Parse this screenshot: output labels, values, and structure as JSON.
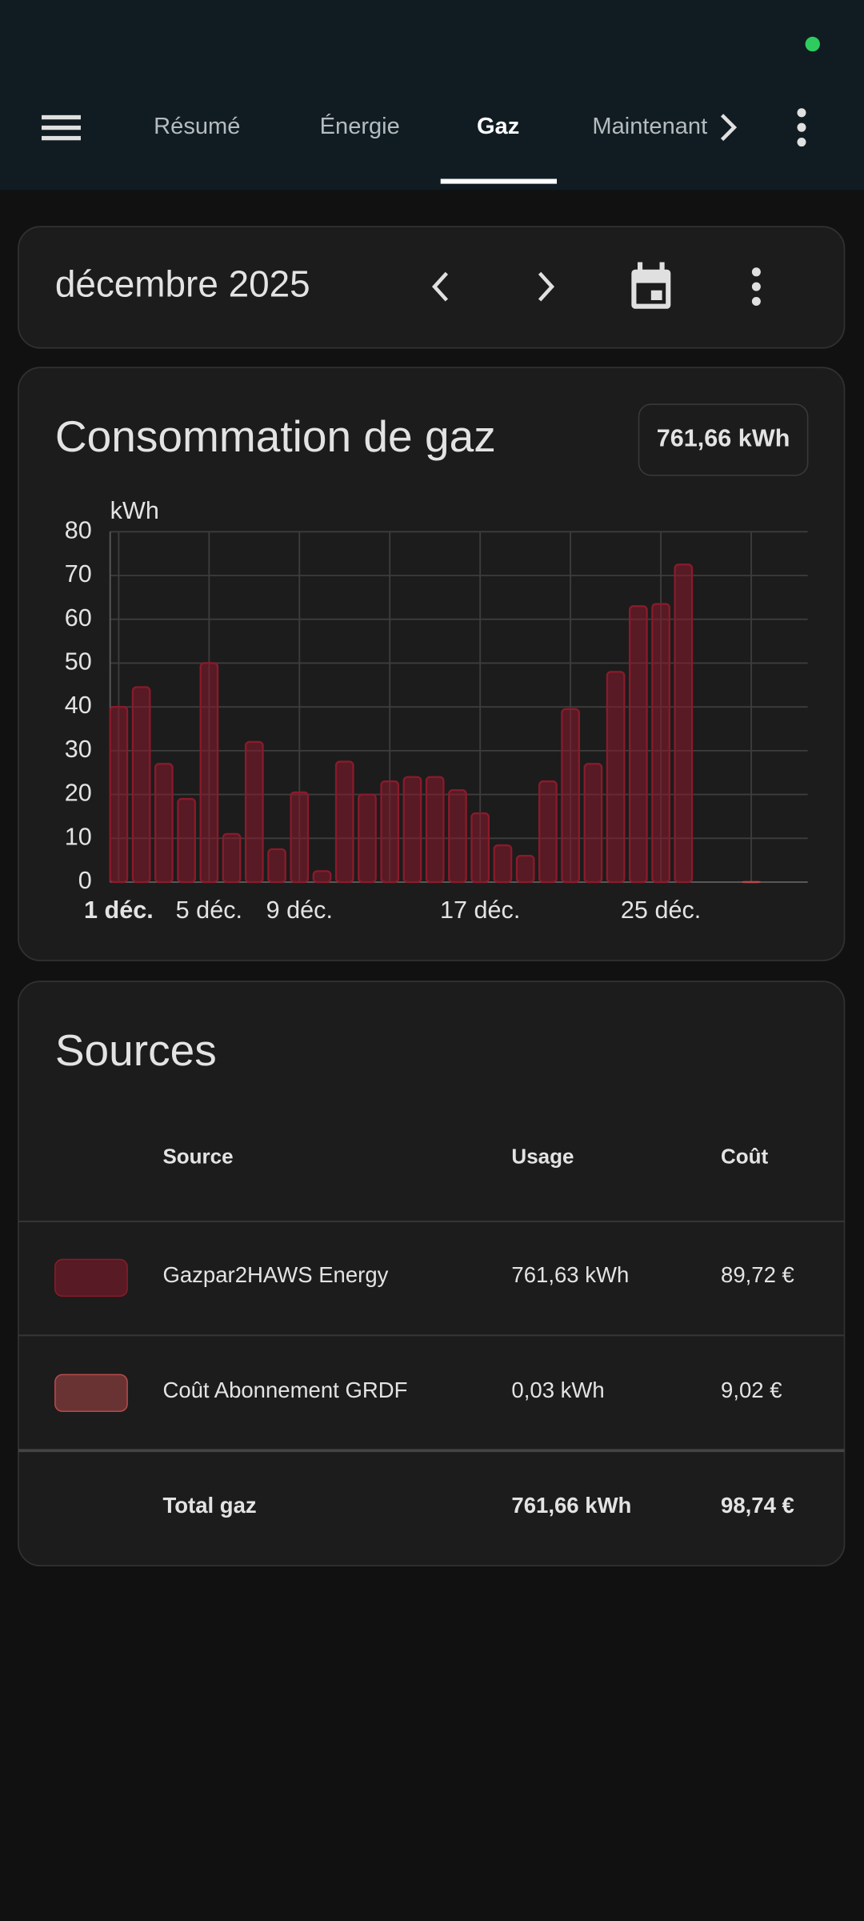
{
  "header": {
    "tabs": [
      "Résumé",
      "Énergie",
      "Gaz",
      "Maintenant"
    ]
  },
  "period": "décembre 2025",
  "chart_data": {
    "type": "bar",
    "title": "Consommation de gaz",
    "total": "761,66 kWh",
    "y_label": "kWh",
    "categories": [
      "1 déc.",
      null,
      null,
      null,
      "5 déc.",
      null,
      null,
      null,
      "9 déc.",
      null,
      null,
      null,
      null,
      null,
      null,
      null,
      "17 déc.",
      null,
      null,
      null,
      null,
      null,
      null,
      null,
      "25 déc.",
      null,
      null,
      null,
      null,
      null,
      null
    ],
    "series": [
      {
        "name": "Gazpar2HAWS Energy",
        "color": "#8b1a2b",
        "values": [
          40,
          44.5,
          27,
          19,
          50,
          11,
          32,
          7.5,
          20.5,
          2.5,
          27.5,
          20,
          23,
          24,
          24,
          21,
          15.7,
          8.4,
          6,
          23,
          39.5,
          27,
          48,
          63,
          63.5,
          72.5,
          null,
          null,
          null,
          null,
          null
        ]
      },
      {
        "name": "Coût Abonnement GRDF",
        "color": "#b84a4a",
        "values": [
          null,
          null,
          null,
          null,
          null,
          null,
          null,
          null,
          null,
          null,
          null,
          null,
          null,
          null,
          null,
          null,
          null,
          null,
          null,
          null,
          null,
          null,
          null,
          null,
          null,
          null,
          null,
          null,
          0.03,
          null,
          null
        ]
      }
    ],
    "ylim": [
      0,
      80
    ],
    "yticks": [
      0,
      10,
      20,
      30,
      40,
      50,
      60,
      70,
      80
    ],
    "grid": true
  },
  "sources": {
    "title": "Sources",
    "columns": [
      "Source",
      "Usage",
      "Coût"
    ],
    "rows": [
      {
        "usage": "761,63 kWh",
        "cost": "89,72 €"
      },
      {
        "usage": "0,03 kWh",
        "cost": "9,02 €"
      }
    ],
    "total": {
      "label": "Total gaz",
      "cost": "98,74 €"
    }
  }
}
